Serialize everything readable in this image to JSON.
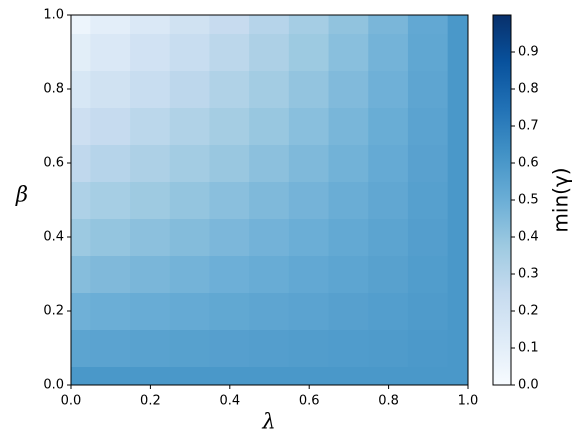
{
  "chart_data": {
    "type": "contour",
    "xlabel": "λ",
    "ylabel": "β",
    "colorbar_label": "min(γ)",
    "x": [
      0,
      0.1,
      0.2,
      0.3,
      0.4,
      0.5,
      0.6,
      0.7,
      0.8,
      0.9,
      1.0
    ],
    "y": [
      0,
      0.1,
      0.2,
      0.3,
      0.4,
      0.5,
      0.6,
      0.7,
      0.8,
      0.9,
      1.0
    ],
    "z": [
      [
        0.6,
        0.6,
        0.6,
        0.6,
        0.6,
        0.6,
        0.6,
        0.6,
        0.6,
        0.6,
        0.6
      ],
      [
        0.545,
        0.55,
        0.555,
        0.56,
        0.565,
        0.57,
        0.575,
        0.581,
        0.586,
        0.593,
        0.6
      ],
      [
        0.49,
        0.5,
        0.509,
        0.519,
        0.529,
        0.54,
        0.55,
        0.561,
        0.573,
        0.585,
        0.6
      ],
      [
        0.435,
        0.449,
        0.464,
        0.479,
        0.494,
        0.51,
        0.526,
        0.542,
        0.559,
        0.578,
        0.6
      ],
      [
        0.38,
        0.399,
        0.419,
        0.439,
        0.459,
        0.48,
        0.501,
        0.523,
        0.546,
        0.57,
        0.6
      ],
      [
        0.325,
        0.349,
        0.374,
        0.399,
        0.424,
        0.45,
        0.476,
        0.504,
        0.532,
        0.563,
        0.6
      ],
      [
        0.27,
        0.299,
        0.328,
        0.358,
        0.388,
        0.419,
        0.451,
        0.484,
        0.518,
        0.556,
        0.6
      ],
      [
        0.215,
        0.249,
        0.283,
        0.318,
        0.353,
        0.389,
        0.426,
        0.465,
        0.505,
        0.548,
        0.6
      ],
      [
        0.16,
        0.198,
        0.238,
        0.278,
        0.318,
        0.359,
        0.402,
        0.446,
        0.491,
        0.541,
        0.6
      ],
      [
        0.105,
        0.148,
        0.192,
        0.237,
        0.282,
        0.329,
        0.377,
        0.426,
        0.478,
        0.533,
        0.6
      ],
      [
        0.05,
        0.098,
        0.147,
        0.197,
        0.247,
        0.299,
        0.352,
        0.407,
        0.464,
        0.526,
        0.6
      ]
    ],
    "colormap": [
      "#f7fbff",
      "#deebf7",
      "#c6dbef",
      "#9ecae1",
      "#6baed6",
      "#4292c6",
      "#2171b5",
      "#08519c",
      "#08306b"
    ],
    "xlim": [
      0,
      1
    ],
    "ylim": [
      0,
      1
    ],
    "clim": [
      0,
      1
    ],
    "xticks": [
      {
        "value": 0,
        "label": "0.0"
      },
      {
        "value": 0.2,
        "label": "0.2"
      },
      {
        "value": 0.4,
        "label": "0.4"
      },
      {
        "value": 0.6,
        "label": "0.6"
      },
      {
        "value": 0.8,
        "label": "0.8"
      },
      {
        "value": 1,
        "label": "1.0"
      }
    ],
    "yticks": [
      {
        "value": 0,
        "label": "0.0"
      },
      {
        "value": 0.2,
        "label": "0.2"
      },
      {
        "value": 0.4,
        "label": "0.4"
      },
      {
        "value": 0.6,
        "label": "0.6"
      },
      {
        "value": 0.8,
        "label": "0.8"
      },
      {
        "value": 1,
        "label": "1.0"
      }
    ],
    "cticks": [
      {
        "value": 0,
        "label": "0.0"
      },
      {
        "value": 0.1,
        "label": "0.1"
      },
      {
        "value": 0.2,
        "label": "0.2"
      },
      {
        "value": 0.3,
        "label": "0.3"
      },
      {
        "value": 0.4,
        "label": "0.4"
      },
      {
        "value": 0.5,
        "label": "0.5"
      },
      {
        "value": 0.6,
        "label": "0.6"
      },
      {
        "value": 0.7,
        "label": "0.7"
      },
      {
        "value": 0.8,
        "label": "0.8"
      },
      {
        "value": 0.9,
        "label": "0.9"
      }
    ]
  }
}
